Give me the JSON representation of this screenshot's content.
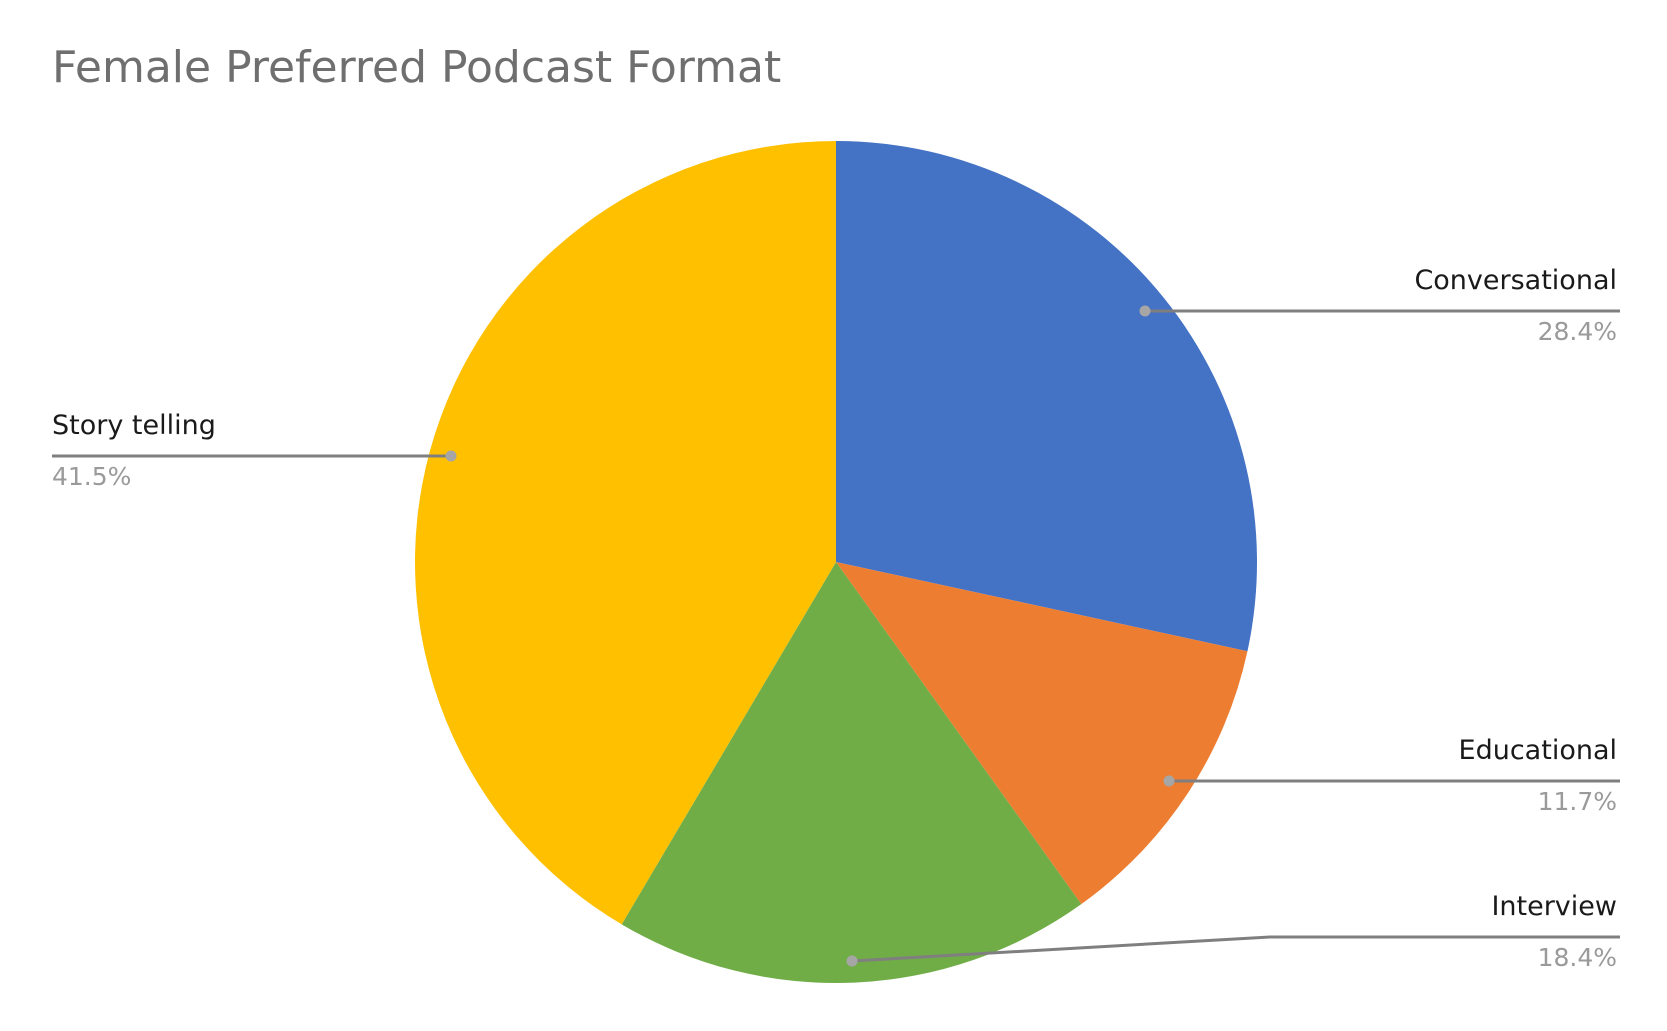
{
  "chart_data": {
    "type": "pie",
    "title": "Female Preferred Podcast Format",
    "slices": [
      {
        "name": "Conversational",
        "value": 28.4,
        "label": "28.4%",
        "color": "#4472C4"
      },
      {
        "name": "Educational",
        "value": 11.7,
        "label": "11.7%",
        "color": "#ED7D31"
      },
      {
        "name": "Interview",
        "value": 18.4,
        "label": "18.4%",
        "color": "#70AD47"
      },
      {
        "name": "Story telling",
        "value": 41.5,
        "label": "41.5%",
        "color": "#FFC000"
      }
    ],
    "start_angle_deg": 0,
    "direction": "clockwise",
    "labels": "outside-with-leader-lines",
    "legend": "none"
  }
}
